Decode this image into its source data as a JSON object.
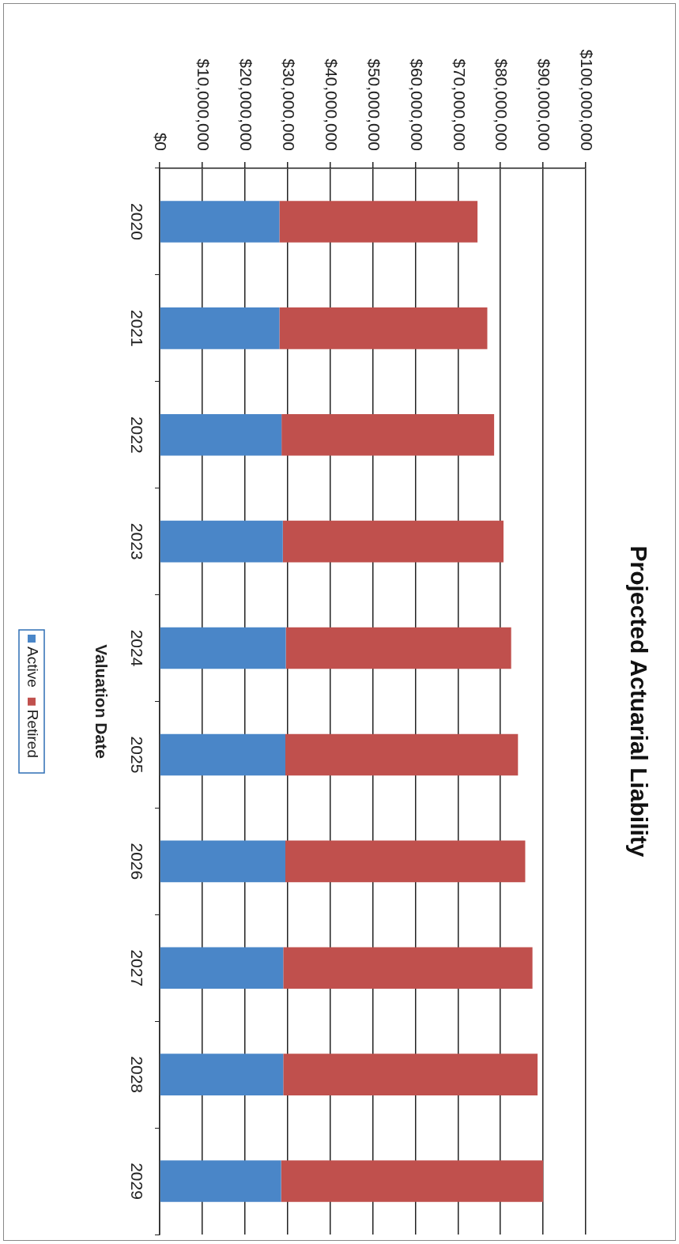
{
  "chart_data": {
    "type": "bar",
    "title": "Projected Actuarial Liability",
    "ylabel": "Valuation Date",
    "categories": [
      "2020",
      "2021",
      "2022",
      "2023",
      "2024",
      "2025",
      "2026",
      "2027",
      "2028",
      "2029"
    ],
    "series": [
      {
        "name": "Active",
        "color": "#4a86c8",
        "values": [
          28100000,
          28100000,
          28600000,
          28900000,
          29600000,
          29500000,
          29500000,
          29000000,
          29000000,
          28500000
        ]
      },
      {
        "name": "Retired",
        "color": "#c0504d",
        "values": [
          46500000,
          48800000,
          49900000,
          51800000,
          52900000,
          54600000,
          56300000,
          58500000,
          59700000,
          61500000
        ]
      }
    ],
    "stacked": true,
    "orientation": "horizontal",
    "xlim": [
      0,
      100000000
    ],
    "xticks": [
      {
        "value": 0,
        "label": "$0"
      },
      {
        "value": 10000000,
        "label": "$10,000,000"
      },
      {
        "value": 20000000,
        "label": "$20,000,000"
      },
      {
        "value": 30000000,
        "label": "$30,000,000"
      },
      {
        "value": 40000000,
        "label": "$40,000,000"
      },
      {
        "value": 50000000,
        "label": "$50,000,000"
      },
      {
        "value": 60000000,
        "label": "$60,000,000"
      },
      {
        "value": 70000000,
        "label": "$70,000,000"
      },
      {
        "value": 80000000,
        "label": "$80,000,000"
      },
      {
        "value": 90000000,
        "label": "$90,000,000"
      },
      {
        "value": 100000000,
        "label": "$100,000,000"
      }
    ],
    "grid": "x",
    "legend": "left"
  }
}
